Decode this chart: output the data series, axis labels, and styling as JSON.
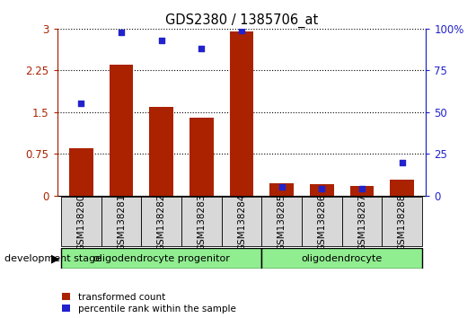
{
  "title": "GDS2380 / 1385706_at",
  "samples": [
    "GSM138280",
    "GSM138281",
    "GSM138282",
    "GSM138283",
    "GSM138284",
    "GSM138285",
    "GSM138286",
    "GSM138287",
    "GSM138288"
  ],
  "transformed_counts": [
    0.85,
    2.35,
    1.6,
    1.4,
    2.95,
    0.22,
    0.2,
    0.18,
    0.28
  ],
  "percentile_ranks": [
    55,
    98,
    93,
    88,
    99,
    5,
    4,
    4,
    20
  ],
  "bar_color": "#aa2200",
  "dot_color": "#2222cc",
  "left_ylim": [
    0,
    3
  ],
  "right_ylim": [
    0,
    100
  ],
  "left_yticks": [
    0,
    0.75,
    1.5,
    2.25,
    3
  ],
  "right_yticks": [
    0,
    25,
    50,
    75,
    100
  ],
  "left_yticklabels": [
    "0",
    "0.75",
    "1.5",
    "2.25",
    "3"
  ],
  "right_yticklabels": [
    "0",
    "25",
    "50",
    "75",
    "100%"
  ],
  "groups": [
    {
      "label": "oligodendrocyte progenitor",
      "start": 0,
      "end": 5
    },
    {
      "label": "oligodendrocyte",
      "start": 5,
      "end": 9
    }
  ],
  "group_color": "#90EE90",
  "legend_items": [
    {
      "label": "transformed count",
      "color": "#aa2200"
    },
    {
      "label": "percentile rank within the sample",
      "color": "#2222cc"
    }
  ],
  "dev_stage_label": "development stage",
  "figsize": [
    5.3,
    3.54
  ],
  "dpi": 100
}
